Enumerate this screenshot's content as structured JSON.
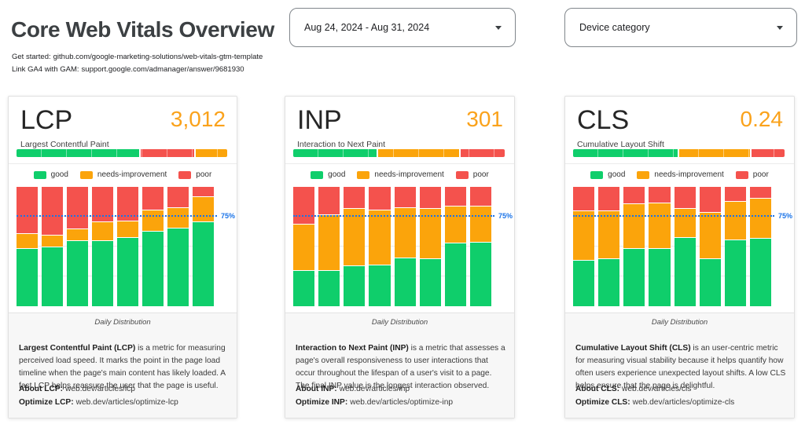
{
  "page": {
    "title": "Core Web Vitals Overview",
    "links": [
      {
        "label": "Get started:",
        "url": "github.com/google-marketing-solutions/web-vitals-gtm-template"
      },
      {
        "label": "Link GA4 with GAM:",
        "url": "support.google.com/admanager/answer/9681930"
      }
    ]
  },
  "filters": {
    "date_range": {
      "value": "Aug 24, 2024 - Aug 31, 2024"
    },
    "device_category": {
      "label": "Device category"
    }
  },
  "colors": {
    "good": "#0fce6b",
    "needs_improvement": "#fba40b",
    "poor": "#f4524d",
    "metric_value": "#faa21b",
    "threshold_blue": "#1a73e8"
  },
  "legend": [
    {
      "key": "good",
      "label": "good"
    },
    {
      "key": "needs_improvement",
      "label": "needs-improvement"
    },
    {
      "key": "poor",
      "label": "poor"
    }
  ],
  "cards": [
    {
      "metric": "LCP",
      "value": "3,012",
      "subtitle": "Largest Contentful Paint",
      "summary_bar": [
        {
          "key": "good",
          "pct": 59
        },
        {
          "key": "poor",
          "pct": 26
        },
        {
          "key": "needs_improvement",
          "pct": 15
        }
      ],
      "chart_data": {
        "type": "stacked-bar-100",
        "bars": 8,
        "ylim": [
          0,
          100
        ],
        "gridlines": [
          25,
          50,
          75
        ],
        "xlabel": "Daily Distribution",
        "threshold_line": {
          "value": 75,
          "label": "75%"
        },
        "series": [
          {
            "name": "good",
            "values": [
              49,
              50,
              55,
              55,
              58,
              63,
              66,
              71
            ]
          },
          {
            "name": "needs-improvement",
            "values": [
              12,
              10,
              10,
              16,
              14,
              18,
              17,
              21
            ]
          },
          {
            "name": "poor",
            "values": [
              39,
              40,
              35,
              29,
              28,
              19,
              17,
              8
            ]
          }
        ]
      },
      "description_bold": "Largest Contentful Paint (LCP)",
      "description_rest": " is a metric for measuring perceived load speed. It marks the point in the page load timeline when the page's main content has likely loaded. A fast LCP helps reassure the user that the page is useful.",
      "about_label": "About LCP:",
      "about_url": "web.dev/articles/lcp",
      "optimize_label": "Optimize LCP:",
      "optimize_url": "web.dev/articles/optimize-lcp"
    },
    {
      "metric": "INP",
      "value": "301",
      "subtitle": "Interaction to Next Paint",
      "summary_bar": [
        {
          "key": "good",
          "pct": 40
        },
        {
          "key": "needs_improvement",
          "pct": 39
        },
        {
          "key": "poor",
          "pct": 21
        }
      ],
      "chart_data": {
        "type": "stacked-bar-100",
        "bars": 8,
        "ylim": [
          0,
          100
        ],
        "gridlines": [
          25,
          50,
          75
        ],
        "xlabel": "Daily Distribution",
        "threshold_line": {
          "value": 75,
          "label": "75%"
        },
        "series": [
          {
            "name": "good",
            "values": [
              30,
              30,
              34,
              35,
              41,
              40,
              53,
              54
            ]
          },
          {
            "name": "needs-improvement",
            "values": [
              39,
              47,
              48,
              46,
              42,
              42,
              31,
              30
            ]
          },
          {
            "name": "poor",
            "values": [
              31,
              23,
              18,
              19,
              17,
              18,
              16,
              16
            ]
          }
        ]
      },
      "description_bold": "Interaction to Next Paint (INP)",
      "description_rest": " is a metric that assesses a page's overall responsiveness to user interactions that occur throughout the lifespan of a user's visit to a page. The final INP value is the longest interaction observed.",
      "about_label": "About INP:",
      "about_url": "web.dev/articles/inp",
      "optimize_label": "Optimize INP:",
      "optimize_url": "web.dev/articles/optimize-inp"
    },
    {
      "metric": "CLS",
      "value": "0.24",
      "subtitle": "Cumulative Layout Shift",
      "summary_bar": [
        {
          "key": "good",
          "pct": 50
        },
        {
          "key": "needs_improvement",
          "pct": 34
        },
        {
          "key": "poor",
          "pct": 16
        }
      ],
      "chart_data": {
        "type": "stacked-bar-100",
        "bars": 8,
        "ylim": [
          0,
          100
        ],
        "gridlines": [
          25,
          50,
          75
        ],
        "xlabel": "Daily Distribution",
        "threshold_line": {
          "value": 75,
          "label": "75%"
        },
        "series": [
          {
            "name": "good",
            "values": [
              39,
              40,
              49,
              49,
              58,
              40,
              56,
              57
            ]
          },
          {
            "name": "needs-improvement",
            "values": [
              41,
              40,
              37,
              38,
              24,
              39,
              32,
              34
            ]
          },
          {
            "name": "poor",
            "values": [
              20,
              20,
              14,
              13,
              18,
              21,
              12,
              9
            ]
          }
        ]
      },
      "description_bold": "Cumulative Layout Shift (CLS)",
      "description_rest": " is an user-centric metric for measuring visual stability because it helps quantify how often users experience unexpected layout shifts. A low CLS helps ensure that the page is delightful.",
      "about_label": "About CLS:",
      "about_url": "web.dev/articles/cls",
      "optimize_label": "Optimize CLS:",
      "optimize_url": "web.dev/articles/optimize-cls"
    }
  ]
}
